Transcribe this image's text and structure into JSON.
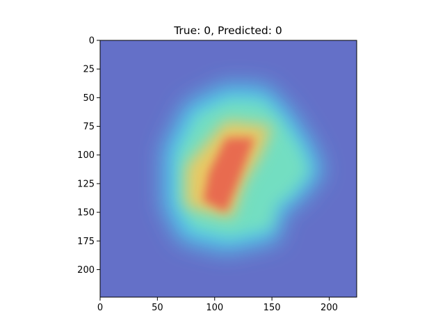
{
  "chart_data": {
    "type": "heatmap",
    "title": "True: 0, Predicted: 0",
    "xlabel": "",
    "ylabel": "",
    "xlim": [
      0,
      224
    ],
    "ylim": [
      224,
      0
    ],
    "y_inverted": true,
    "xticks": [
      0,
      50,
      100,
      150,
      200
    ],
    "yticks": [
      0,
      25,
      50,
      75,
      100,
      125,
      150,
      175,
      200
    ],
    "grid": false,
    "colormap": "jet",
    "background_color": "#6470c8",
    "overlay_alpha": 0.5,
    "heat_region": {
      "outer_polygon": [
        [
          55,
          95
        ],
        [
          75,
          55
        ],
        [
          110,
          38
        ],
        [
          145,
          40
        ],
        [
          165,
          60
        ],
        [
          185,
          90
        ],
        [
          195,
          115
        ],
        [
          175,
          140
        ],
        [
          160,
          150
        ],
        [
          155,
          175
        ],
        [
          110,
          185
        ],
        [
          70,
          175
        ],
        [
          55,
          145
        ]
      ],
      "inner_polygon": [
        [
          75,
          110
        ],
        [
          110,
          70
        ],
        [
          150,
          75
        ],
        [
          140,
          100
        ],
        [
          125,
          125
        ],
        [
          115,
          155
        ],
        [
          75,
          145
        ]
      ],
      "core_polygon": [
        [
          95,
          115
        ],
        [
          110,
          85
        ],
        [
          135,
          85
        ],
        [
          120,
          125
        ],
        [
          110,
          150
        ],
        [
          90,
          140
        ]
      ]
    }
  }
}
